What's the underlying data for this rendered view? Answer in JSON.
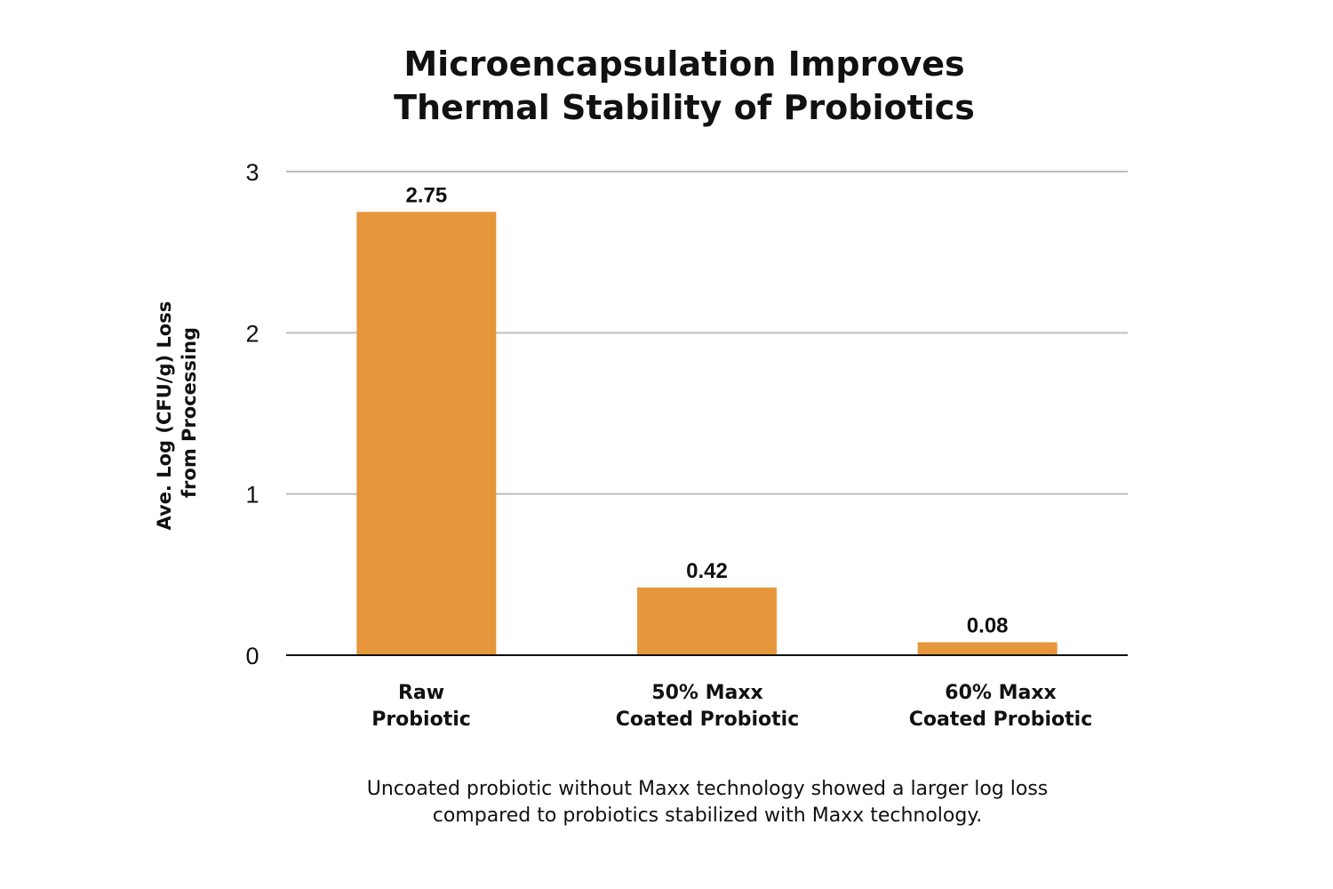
{
  "chart_data": {
    "type": "bar",
    "title": [
      "Microencapsulation Improves",
      "Thermal Stability of Probiotics"
    ],
    "ylabel": [
      "Ave. Log (CFU/g) Loss",
      "from Processing"
    ],
    "xlabel": "",
    "categories": [
      [
        "Raw",
        "Probiotic"
      ],
      [
        "50% Maxx",
        "Coated Probiotic"
      ],
      [
        "60% Maxx",
        "Coated Probiotic"
      ]
    ],
    "values": [
      2.75,
      0.42,
      0.08
    ],
    "data_labels": [
      "2.75",
      "0.42",
      "0.08"
    ],
    "ylim": [
      0,
      3
    ],
    "yticks": [
      0,
      1,
      2,
      3
    ],
    "ytick_labels": [
      "0",
      "1",
      "2",
      "3"
    ],
    "grid": "horizontal",
    "legend": "none",
    "colors": {
      "bar": "#E6973B",
      "grid": "#BDBDBD",
      "axis": "#111111"
    }
  },
  "caption": [
    "Uncoated probiotic without Maxx technology showed a larger log loss",
    "compared to probiotics stabilized with Maxx technology."
  ]
}
